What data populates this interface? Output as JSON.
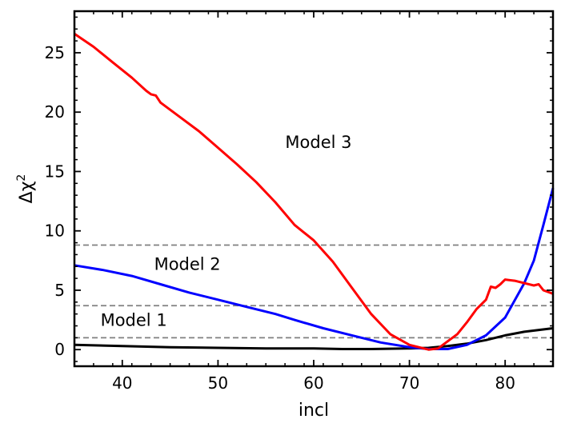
{
  "chart_data": {
    "type": "line",
    "title": "",
    "xlabel": "incl",
    "ylabel_base": "Δχ",
    "ylabel_sup": "2",
    "xlim": [
      35,
      85
    ],
    "ylim": [
      -1.4,
      28.5
    ],
    "xticks": [
      40,
      50,
      60,
      70,
      80
    ],
    "yticks": [
      0,
      5,
      10,
      15,
      20,
      25
    ],
    "grid": false,
    "legend": "none",
    "reference_lines": [
      {
        "y": 1.0,
        "color": "#808080",
        "style": "dashed"
      },
      {
        "y": 3.7,
        "color": "#808080",
        "style": "dashed"
      },
      {
        "y": 8.8,
        "color": "#808080",
        "style": "dashed"
      }
    ],
    "annotations": [
      {
        "text": "Model 1",
        "x": 41.2,
        "y": 2.0
      },
      {
        "text": "Model 2",
        "x": 46.8,
        "y": 6.7
      },
      {
        "text": "Model 3",
        "x": 60.5,
        "y": 17.0
      }
    ],
    "series": [
      {
        "color": "#000000",
        "points": [
          [
            35,
            0.4
          ],
          [
            40,
            0.3
          ],
          [
            45,
            0.2
          ],
          [
            50,
            0.15
          ],
          [
            55,
            0.1
          ],
          [
            60,
            0.1
          ],
          [
            63,
            0.05
          ],
          [
            66,
            0.05
          ],
          [
            70,
            0.1
          ],
          [
            72,
            0.15
          ],
          [
            74,
            0.3
          ],
          [
            76,
            0.5
          ],
          [
            78,
            0.8
          ],
          [
            80,
            1.2
          ],
          [
            82,
            1.5
          ],
          [
            85,
            1.8
          ]
        ]
      },
      {
        "color": "#0000ff",
        "points": [
          [
            35,
            7.1
          ],
          [
            38,
            6.7
          ],
          [
            41,
            6.2
          ],
          [
            44,
            5.5
          ],
          [
            47,
            4.8
          ],
          [
            50,
            4.2
          ],
          [
            53,
            3.6
          ],
          [
            56,
            3.0
          ],
          [
            58,
            2.5
          ],
          [
            61,
            1.8
          ],
          [
            64,
            1.2
          ],
          [
            67,
            0.6
          ],
          [
            70,
            0.2
          ],
          [
            72,
            0.05
          ],
          [
            74,
            0.05
          ],
          [
            76,
            0.4
          ],
          [
            78,
            1.2
          ],
          [
            80,
            2.7
          ],
          [
            82,
            5.6
          ],
          [
            83,
            7.5
          ],
          [
            84,
            10.5
          ],
          [
            85,
            13.6
          ]
        ]
      },
      {
        "color": "#ff0000",
        "points": [
          [
            35,
            26.6
          ],
          [
            37,
            25.5
          ],
          [
            39,
            24.2
          ],
          [
            41,
            22.9
          ],
          [
            42.5,
            21.8
          ],
          [
            43,
            21.5
          ],
          [
            43.5,
            21.4
          ],
          [
            44,
            20.8
          ],
          [
            46,
            19.6
          ],
          [
            48,
            18.4
          ],
          [
            50,
            17.0
          ],
          [
            52,
            15.6
          ],
          [
            54,
            14.1
          ],
          [
            56,
            12.4
          ],
          [
            58,
            10.5
          ],
          [
            60,
            9.2
          ],
          [
            62,
            7.4
          ],
          [
            64,
            5.2
          ],
          [
            66,
            3.0
          ],
          [
            68,
            1.3
          ],
          [
            70,
            0.4
          ],
          [
            72,
            0.0
          ],
          [
            73,
            0.1
          ],
          [
            74,
            0.7
          ],
          [
            75,
            1.3
          ],
          [
            76,
            2.3
          ],
          [
            77,
            3.4
          ],
          [
            78,
            4.2
          ],
          [
            78.5,
            5.3
          ],
          [
            79,
            5.2
          ],
          [
            79.5,
            5.5
          ],
          [
            80,
            5.9
          ],
          [
            81,
            5.8
          ],
          [
            82,
            5.6
          ],
          [
            83,
            5.4
          ],
          [
            83.5,
            5.5
          ],
          [
            84,
            5.0
          ],
          [
            85,
            4.7
          ]
        ]
      }
    ]
  }
}
